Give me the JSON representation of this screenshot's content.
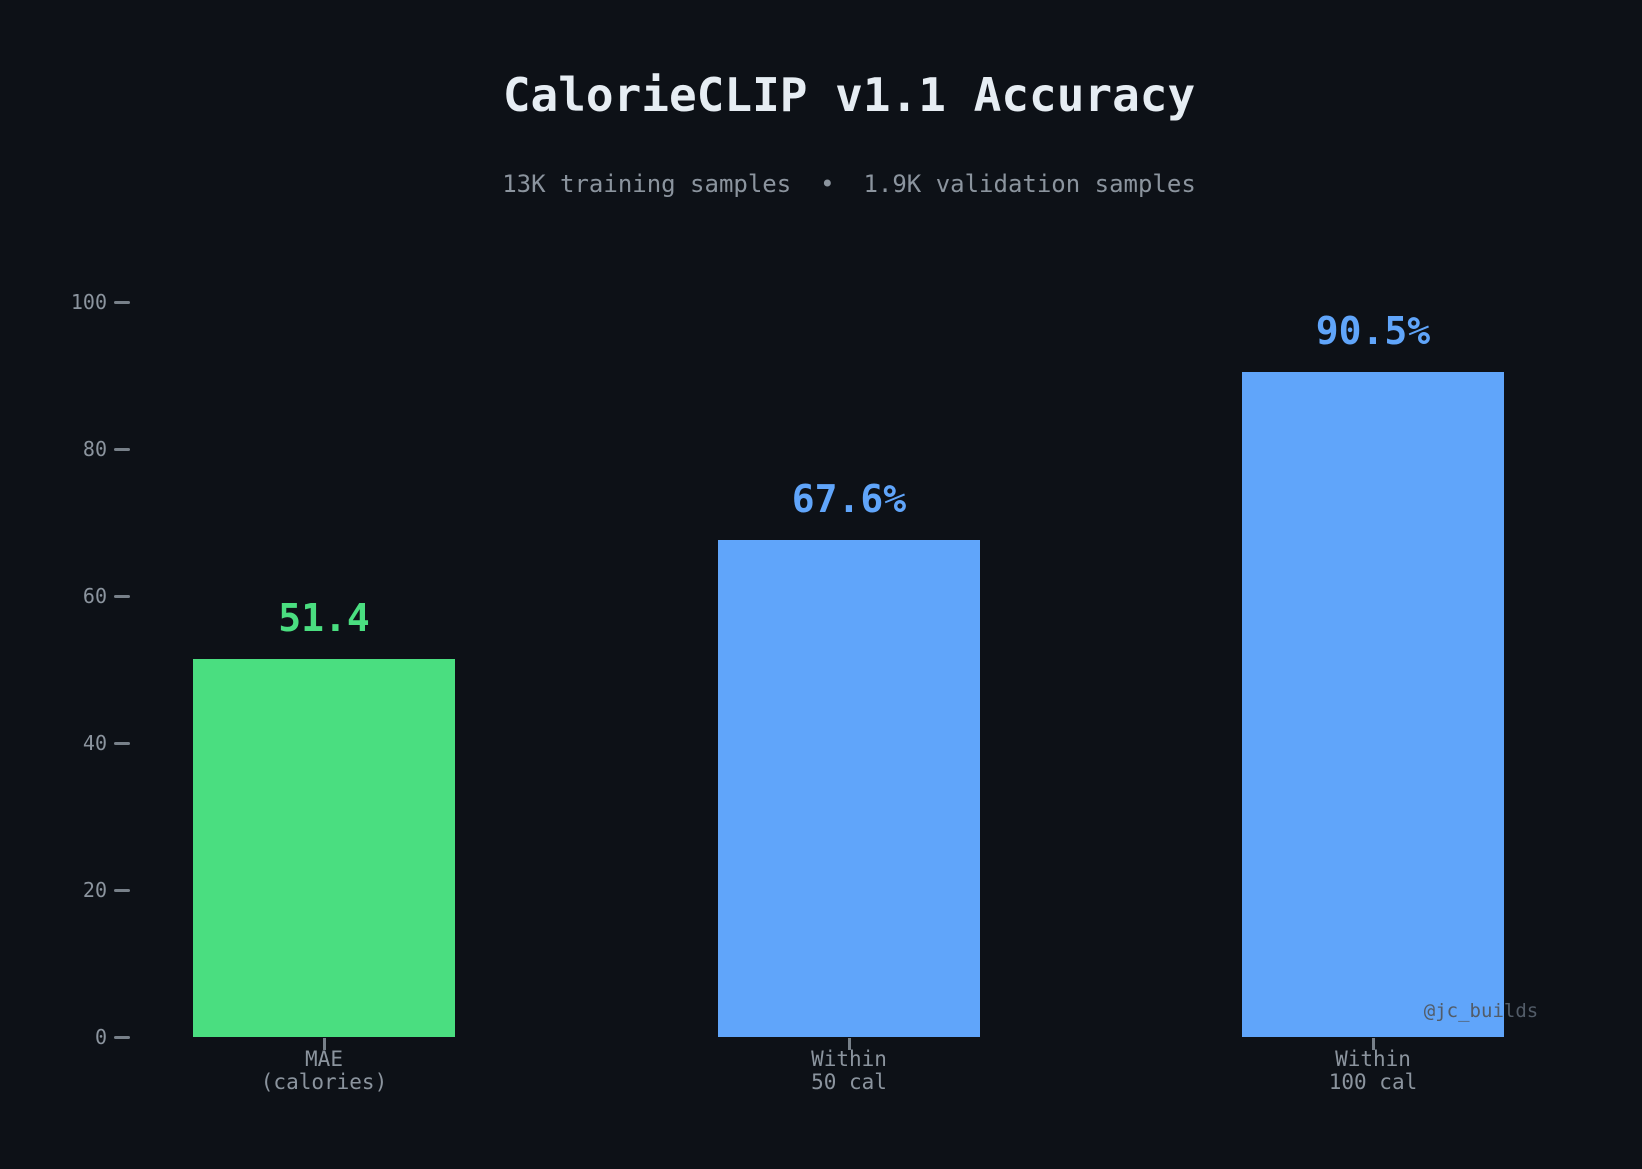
{
  "header": {
    "title": "CalorieCLIP v1.1 Accuracy",
    "subtitle": "13K training samples  •  1.9K validation samples"
  },
  "watermark": "@jc_builds",
  "colors": {
    "background": "#0d1117",
    "title_text": "#e6edf3",
    "muted_text": "#8b949e",
    "green": "#4ade80",
    "blue": "#60a5fa",
    "watermark_text": "#525c68"
  },
  "chart_data": {
    "type": "bar",
    "title": "CalorieCLIP v1.1 Accuracy",
    "subtitle": "13K training samples  •  1.9K validation samples",
    "categories": [
      "MAE\n(calories)",
      "Within\n50 cal",
      "Within\n100 cal"
    ],
    "values": [
      51.4,
      67.6,
      90.5
    ],
    "value_labels": [
      "51.4",
      "67.6%",
      "90.5%"
    ],
    "bar_colors": [
      "#4ade80",
      "#60a5fa",
      "#60a5fa"
    ],
    "bar_names": [
      "mae-calories",
      "within-50-cal",
      "within-100-cal"
    ],
    "xlabel": "",
    "ylabel": "",
    "ylim": [
      0,
      100
    ],
    "yticks": [
      0,
      20,
      40,
      60,
      80,
      100
    ],
    "grid": false,
    "legend_position": "none",
    "annotations": [
      "@jc_builds"
    ]
  }
}
